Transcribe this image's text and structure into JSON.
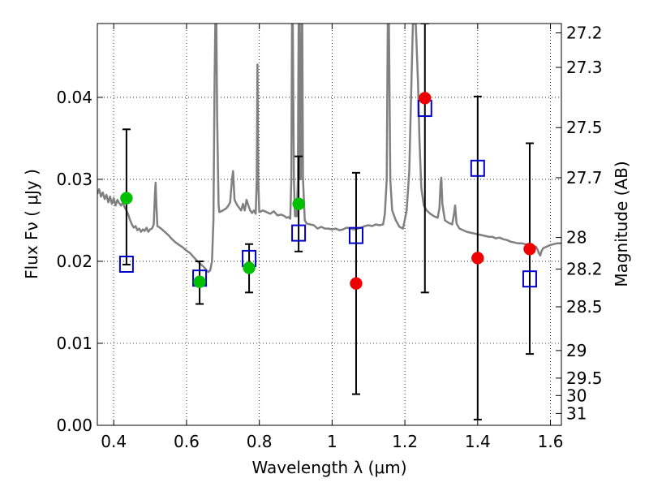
{
  "chart_data": {
    "type": "scatter",
    "xlabel": "Wavelength  λ (μm)",
    "ylabel": "Flux  Fν  ( μJy )",
    "ylabel_right": "Magnitude (AB)",
    "xlim": [
      0.355,
      1.63
    ],
    "ylim": [
      0.0,
      0.049
    ],
    "grid": true,
    "xticks": [
      {
        "value": 0.4,
        "label": "0.4"
      },
      {
        "value": 0.6,
        "label": "0.6"
      },
      {
        "value": 0.8,
        "label": "0.8"
      },
      {
        "value": 1.0,
        "label": "1"
      },
      {
        "value": 1.2,
        "label": "1.2"
      },
      {
        "value": 1.4,
        "label": "1.4"
      },
      {
        "value": 1.6,
        "label": "1.6"
      }
    ],
    "yticks": [
      {
        "value": 0.0,
        "label": "0.00"
      },
      {
        "value": 0.01,
        "label": "0.01"
      },
      {
        "value": 0.02,
        "label": "0.02"
      },
      {
        "value": 0.03,
        "label": "0.03"
      },
      {
        "value": 0.04,
        "label": "0.04"
      }
    ],
    "right_ticks": [
      {
        "mag": 27.2,
        "label": "27.2"
      },
      {
        "mag": 27.3,
        "label": "27.3"
      },
      {
        "mag": 27.5,
        "label": "27.5"
      },
      {
        "mag": 27.7,
        "label": "27.7"
      },
      {
        "mag": 28.0,
        "label": "28"
      },
      {
        "mag": 28.2,
        "label": "28.2"
      },
      {
        "mag": 28.5,
        "label": "28.5"
      },
      {
        "mag": 29.0,
        "label": "29"
      },
      {
        "mag": 29.5,
        "label": "29.5"
      },
      {
        "mag": 30.0,
        "label": "30"
      },
      {
        "mag": 31.0,
        "label": "31"
      }
    ],
    "template_spectrum": {
      "color": "#808080",
      "points": [
        [
          0.355,
          0.0282
        ],
        [
          0.36,
          0.0288
        ],
        [
          0.365,
          0.0279
        ],
        [
          0.37,
          0.0284
        ],
        [
          0.375,
          0.0276
        ],
        [
          0.38,
          0.0281
        ],
        [
          0.385,
          0.0272
        ],
        [
          0.39,
          0.0279
        ],
        [
          0.395,
          0.027
        ],
        [
          0.4,
          0.0277
        ],
        [
          0.405,
          0.0268
        ],
        [
          0.41,
          0.0275
        ],
        [
          0.415,
          0.0271
        ],
        [
          0.42,
          0.0268
        ],
        [
          0.425,
          0.0272
        ],
        [
          0.43,
          0.0266
        ],
        [
          0.435,
          0.0262
        ],
        [
          0.44,
          0.0257
        ],
        [
          0.445,
          0.025
        ],
        [
          0.45,
          0.0245
        ],
        [
          0.455,
          0.0241
        ],
        [
          0.46,
          0.0243
        ],
        [
          0.465,
          0.0238
        ],
        [
          0.47,
          0.024
        ],
        [
          0.475,
          0.0236
        ],
        [
          0.48,
          0.0239
        ],
        [
          0.485,
          0.0237
        ],
        [
          0.49,
          0.0241
        ],
        [
          0.495,
          0.0236
        ],
        [
          0.5,
          0.0239
        ],
        [
          0.505,
          0.024
        ],
        [
          0.51,
          0.0245
        ],
        [
          0.513,
          0.028
        ],
        [
          0.515,
          0.0296
        ],
        [
          0.517,
          0.027
        ],
        [
          0.52,
          0.0243
        ],
        [
          0.53,
          0.024
        ],
        [
          0.54,
          0.0236
        ],
        [
          0.55,
          0.0232
        ],
        [
          0.56,
          0.0227
        ],
        [
          0.57,
          0.0223
        ],
        [
          0.58,
          0.022
        ],
        [
          0.59,
          0.0217
        ],
        [
          0.6,
          0.0213
        ],
        [
          0.61,
          0.021
        ],
        [
          0.62,
          0.0205
        ],
        [
          0.63,
          0.02
        ],
        [
          0.64,
          0.0196
        ],
        [
          0.65,
          0.0192
        ],
        [
          0.655,
          0.0189
        ],
        [
          0.66,
          0.0187
        ],
        [
          0.665,
          0.0189
        ],
        [
          0.67,
          0.02
        ],
        [
          0.674,
          0.025
        ],
        [
          0.677,
          0.042
        ],
        [
          0.679,
          0.049
        ],
        [
          0.682,
          0.049
        ],
        [
          0.684,
          0.038
        ],
        [
          0.688,
          0.027
        ],
        [
          0.69,
          0.026
        ],
        [
          0.7,
          0.0262
        ],
        [
          0.71,
          0.0265
        ],
        [
          0.715,
          0.0268
        ],
        [
          0.72,
          0.0272
        ],
        [
          0.725,
          0.03
        ],
        [
          0.728,
          0.031
        ],
        [
          0.732,
          0.0275
        ],
        [
          0.74,
          0.0268
        ],
        [
          0.75,
          0.0262
        ],
        [
          0.755,
          0.027
        ],
        [
          0.76,
          0.0262
        ],
        [
          0.765,
          0.0275
        ],
        [
          0.77,
          0.0268
        ],
        [
          0.775,
          0.0262
        ],
        [
          0.78,
          0.0259
        ],
        [
          0.785,
          0.0262
        ],
        [
          0.79,
          0.0258
        ],
        [
          0.793,
          0.03
        ],
        [
          0.795,
          0.044
        ],
        [
          0.797,
          0.03
        ],
        [
          0.8,
          0.026
        ],
        [
          0.81,
          0.0262
        ],
        [
          0.82,
          0.026
        ],
        [
          0.83,
          0.0258
        ],
        [
          0.84,
          0.0261
        ],
        [
          0.85,
          0.0256
        ],
        [
          0.86,
          0.0257
        ],
        [
          0.87,
          0.0255
        ],
        [
          0.875,
          0.0253
        ],
        [
          0.88,
          0.0254
        ],
        [
          0.885,
          0.0252
        ],
        [
          0.888,
          0.03
        ],
        [
          0.89,
          0.049
        ],
        [
          0.892,
          0.049
        ],
        [
          0.895,
          0.03
        ],
        [
          0.898,
          0.0255
        ],
        [
          0.903,
          0.0255
        ],
        [
          0.906,
          0.03
        ],
        [
          0.908,
          0.049
        ],
        [
          0.91,
          0.049
        ],
        [
          0.912,
          0.03
        ],
        [
          0.914,
          0.03
        ],
        [
          0.916,
          0.049
        ],
        [
          0.918,
          0.049
        ],
        [
          0.92,
          0.03
        ],
        [
          0.925,
          0.025
        ],
        [
          0.93,
          0.0246
        ],
        [
          0.94,
          0.0245
        ],
        [
          0.95,
          0.0244
        ],
        [
          0.96,
          0.024
        ],
        [
          0.97,
          0.0242
        ],
        [
          0.98,
          0.024
        ],
        [
          0.99,
          0.024
        ],
        [
          1.0,
          0.0239
        ],
        [
          1.01,
          0.024
        ],
        [
          1.02,
          0.0238
        ],
        [
          1.03,
          0.0239
        ],
        [
          1.04,
          0.0241
        ],
        [
          1.05,
          0.024
        ],
        [
          1.06,
          0.0239
        ],
        [
          1.07,
          0.024
        ],
        [
          1.08,
          0.0241
        ],
        [
          1.09,
          0.0243
        ],
        [
          1.1,
          0.0244
        ],
        [
          1.11,
          0.0243
        ],
        [
          1.12,
          0.0245
        ],
        [
          1.13,
          0.0244
        ],
        [
          1.14,
          0.0245
        ],
        [
          1.145,
          0.0258
        ],
        [
          1.15,
          0.03
        ],
        [
          1.153,
          0.049
        ],
        [
          1.156,
          0.049
        ],
        [
          1.16,
          0.03
        ],
        [
          1.165,
          0.0262
        ],
        [
          1.175,
          0.025
        ],
        [
          1.185,
          0.0242
        ],
        [
          1.195,
          0.024
        ],
        [
          1.205,
          0.0262
        ],
        [
          1.212,
          0.031
        ],
        [
          1.218,
          0.042
        ],
        [
          1.222,
          0.049
        ],
        [
          1.23,
          0.049
        ],
        [
          1.236,
          0.042
        ],
        [
          1.24,
          0.035
        ],
        [
          1.245,
          0.029
        ],
        [
          1.252,
          0.0268
        ],
        [
          1.26,
          0.0262
        ],
        [
          1.27,
          0.0258
        ],
        [
          1.28,
          0.0255
        ],
        [
          1.29,
          0.0253
        ],
        [
          1.295,
          0.0265
        ],
        [
          1.298,
          0.0295
        ],
        [
          1.3,
          0.0302
        ],
        [
          1.303,
          0.027
        ],
        [
          1.31,
          0.025
        ],
        [
          1.32,
          0.0247
        ],
        [
          1.33,
          0.0245
        ],
        [
          1.335,
          0.0258
        ],
        [
          1.338,
          0.0268
        ],
        [
          1.342,
          0.0246
        ],
        [
          1.35,
          0.024
        ],
        [
          1.36,
          0.0238
        ],
        [
          1.37,
          0.0236
        ],
        [
          1.38,
          0.0235
        ],
        [
          1.39,
          0.0234
        ],
        [
          1.4,
          0.0233
        ],
        [
          1.41,
          0.0232
        ],
        [
          1.42,
          0.0231
        ],
        [
          1.43,
          0.023
        ],
        [
          1.44,
          0.023
        ],
        [
          1.45,
          0.0228
        ],
        [
          1.46,
          0.0229
        ],
        [
          1.47,
          0.0227
        ],
        [
          1.48,
          0.0226
        ],
        [
          1.49,
          0.0224
        ],
        [
          1.5,
          0.0223
        ],
        [
          1.51,
          0.0222
        ],
        [
          1.52,
          0.0222
        ],
        [
          1.53,
          0.0221
        ],
        [
          1.54,
          0.022
        ],
        [
          1.55,
          0.0219
        ],
        [
          1.56,
          0.0218
        ],
        [
          1.565,
          0.0214
        ],
        [
          1.568,
          0.021
        ],
        [
          1.572,
          0.0207
        ],
        [
          1.575,
          0.0212
        ],
        [
          1.58,
          0.0216
        ],
        [
          1.59,
          0.0218
        ],
        [
          1.6,
          0.022
        ],
        [
          1.61,
          0.0221
        ],
        [
          1.62,
          0.0222
        ],
        [
          1.63,
          0.0222
        ]
      ]
    },
    "series": [
      {
        "marker": "square",
        "color": "#0000cc",
        "points": [
          {
            "x": 0.435,
            "y": 0.0196,
            "yerr_low": 0.0196,
            "yerr_high": 0.0361
          },
          {
            "x": 0.636,
            "y": 0.0179,
            "yerr_low": 0.0148,
            "yerr_high": 0.02
          },
          {
            "x": 0.772,
            "y": 0.0203,
            "yerr_low": 0.0162,
            "yerr_high": 0.0221
          },
          {
            "x": 0.908,
            "y": 0.0234,
            "yerr_low": 0.0212,
            "yerr_high": 0.0328
          },
          {
            "x": 1.066,
            "y": 0.0231,
            "yerr_low": 0.0038,
            "yerr_high": 0.0308
          },
          {
            "x": 1.255,
            "y": 0.0386,
            "yerr_low": 0.0162,
            "yerr_high": 0.049
          },
          {
            "x": 1.4,
            "y": 0.0313,
            "yerr_low": 0.0007,
            "yerr_high": 0.0401
          },
          {
            "x": 1.543,
            "y": 0.0178,
            "yerr_low": 0.0087,
            "yerr_high": 0.0344
          }
        ]
      },
      {
        "marker": "circle",
        "color": "#00c000",
        "points": [
          {
            "x": 0.435,
            "y": 0.0277
          },
          {
            "x": 0.636,
            "y": 0.0175
          },
          {
            "x": 0.772,
            "y": 0.0192
          },
          {
            "x": 0.908,
            "y": 0.027
          }
        ]
      },
      {
        "marker": "circle",
        "color": "#ee0000",
        "points": [
          {
            "x": 1.066,
            "y": 0.0173
          },
          {
            "x": 1.255,
            "y": 0.0399
          },
          {
            "x": 1.4,
            "y": 0.0204
          },
          {
            "x": 1.543,
            "y": 0.0215
          }
        ]
      }
    ]
  }
}
